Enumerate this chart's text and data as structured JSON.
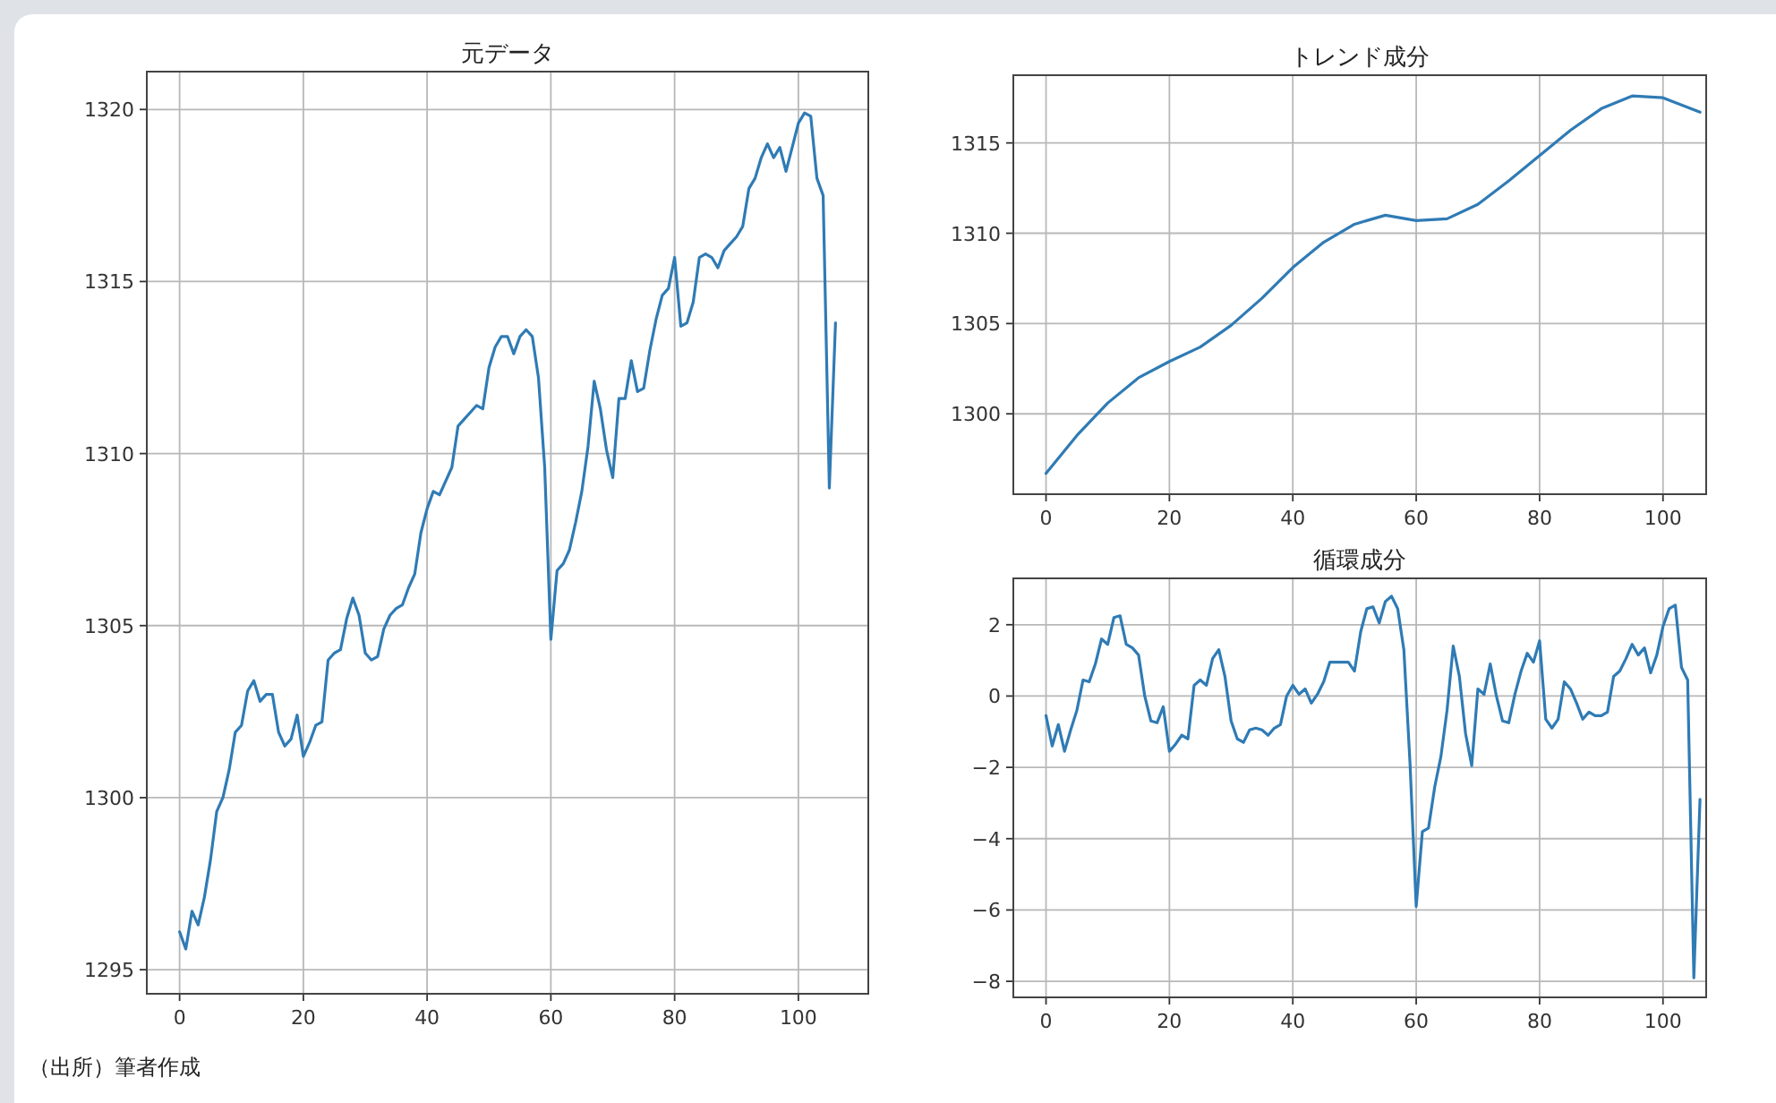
{
  "chart_data": [
    {
      "type": "line",
      "title": "元データ",
      "xlim": [
        -5.3,
        111.3
      ],
      "ylim": [
        1294.3,
        1321.1
      ],
      "xticks": [
        0,
        20,
        40,
        60,
        80,
        100
      ],
      "yticks": [
        1295,
        1300,
        1305,
        1310,
        1315,
        1320
      ],
      "grid": true,
      "annotations": [
        "（出所）筆者作成"
      ],
      "series": [
        {
          "color": "#2f7bb5",
          "x": [
            0,
            1,
            2,
            3,
            4,
            5,
            6,
            7,
            8,
            9,
            10,
            11,
            12,
            13,
            14,
            15,
            16,
            17,
            18,
            19,
            20,
            21,
            22,
            23,
            24,
            25,
            26,
            27,
            28,
            29,
            30,
            31,
            32,
            33,
            34,
            35,
            36,
            37,
            38,
            39,
            40,
            41,
            42,
            43,
            44,
            45,
            46,
            47,
            48,
            49,
            50,
            51,
            52,
            53,
            54,
            55,
            56,
            57,
            58,
            59,
            60,
            61,
            62,
            63,
            64,
            65,
            66,
            67,
            68,
            69,
            70,
            71,
            72,
            73,
            74,
            75,
            76,
            77,
            78,
            79,
            80,
            81,
            82,
            83,
            84,
            85,
            86,
            87,
            88,
            89,
            90,
            91,
            92,
            93,
            94,
            95,
            96,
            97,
            98,
            99,
            100,
            101,
            102,
            103,
            104,
            105,
            106
          ],
          "values": [
            1296.1,
            1295.6,
            1296.7,
            1296.3,
            1297.1,
            1298.2,
            1299.6,
            1300.0,
            1300.8,
            1301.9,
            1302.1,
            1303.1,
            1303.4,
            1302.8,
            1303.0,
            1303.0,
            1301.9,
            1301.5,
            1301.7,
            1302.4,
            1301.2,
            1301.6,
            1302.1,
            1302.2,
            1304.0,
            1304.2,
            1304.3,
            1305.2,
            1305.8,
            1305.3,
            1304.2,
            1304.0,
            1304.1,
            1304.9,
            1305.3,
            1305.5,
            1305.6,
            1306.1,
            1306.5,
            1307.7,
            1308.4,
            1308.9,
            1308.8,
            1309.2,
            1309.6,
            1310.8,
            1311.0,
            1311.2,
            1311.4,
            1311.3,
            1312.5,
            1313.1,
            1313.4,
            1313.4,
            1312.9,
            1313.4,
            1313.6,
            1313.4,
            1312.2,
            1309.6,
            1304.6,
            1306.6,
            1306.8,
            1307.2,
            1308.0,
            1308.9,
            1310.2,
            1312.1,
            1311.3,
            1310.1,
            1309.3,
            1311.6,
            1311.6,
            1312.7,
            1311.8,
            1311.9,
            1313.0,
            1313.9,
            1314.6,
            1314.8,
            1315.7,
            1313.7,
            1313.8,
            1314.4,
            1315.7,
            1315.8,
            1315.7,
            1315.4,
            1315.9,
            1316.1,
            1316.3,
            1316.6,
            1317.7,
            1318.0,
            1318.6,
            1319.0,
            1318.6,
            1318.9,
            1318.2,
            1318.9,
            1319.6,
            1319.9,
            1319.8,
            1318.0,
            1317.5,
            1309.0,
            1313.8
          ]
        }
      ]
    },
    {
      "type": "line",
      "title": "トレンド成分",
      "xlim": [
        -5.3,
        107
      ],
      "ylim": [
        1295.55,
        1318.75
      ],
      "xticks": [
        0,
        20,
        40,
        60,
        80,
        100
      ],
      "yticks": [
        1300,
        1305,
        1310,
        1315
      ],
      "grid": true,
      "series": [
        {
          "color": "#2f7bb5",
          "x": [
            0,
            5,
            10,
            15,
            20,
            25,
            30,
            35,
            40,
            45,
            50,
            55,
            60,
            65,
            70,
            75,
            80,
            85,
            90,
            95,
            100,
            106
          ],
          "values": [
            1296.7,
            1298.8,
            1300.6,
            1302.0,
            1302.9,
            1303.7,
            1304.9,
            1306.4,
            1308.1,
            1309.5,
            1310.5,
            1311.0,
            1310.7,
            1310.8,
            1311.6,
            1312.9,
            1314.3,
            1315.7,
            1316.9,
            1317.6,
            1317.5,
            1316.7
          ]
        }
      ]
    },
    {
      "type": "line",
      "title": "循環成分",
      "xlim": [
        -5.3,
        107
      ],
      "ylim": [
        -8.45,
        3.3
      ],
      "xticks": [
        0,
        20,
        40,
        60,
        80,
        100
      ],
      "yticks": [
        {
          "value": -8,
          "label": "−8"
        },
        {
          "value": -6,
          "label": "−6"
        },
        {
          "value": -4,
          "label": "−4"
        },
        {
          "value": -2,
          "label": "−2"
        },
        0,
        2
      ],
      "grid": true,
      "series": [
        {
          "color": "#2f7bb5",
          "x": [
            0,
            1,
            2,
            3,
            4,
            5,
            6,
            7,
            8,
            9,
            10,
            11,
            12,
            13,
            14,
            15,
            16,
            17,
            18,
            19,
            20,
            21,
            22,
            23,
            24,
            25,
            26,
            27,
            28,
            29,
            30,
            31,
            32,
            33,
            34,
            35,
            36,
            37,
            38,
            39,
            40,
            41,
            42,
            43,
            44,
            45,
            46,
            47,
            48,
            49,
            50,
            51,
            52,
            53,
            54,
            55,
            56,
            57,
            58,
            59,
            60,
            61,
            62,
            63,
            64,
            65,
            66,
            67,
            68,
            69,
            70,
            71,
            72,
            73,
            74,
            75,
            76,
            77,
            78,
            79,
            80,
            81,
            82,
            83,
            84,
            85,
            86,
            87,
            88,
            89,
            90,
            91,
            92,
            93,
            94,
            95,
            96,
            97,
            98,
            99,
            100,
            101,
            102,
            103,
            104,
            105,
            106
          ],
          "values": [
            -0.55,
            -1.4,
            -0.8,
            -1.55,
            -0.95,
            -0.4,
            0.45,
            0.4,
            0.9,
            1.6,
            1.45,
            2.2,
            2.25,
            1.45,
            1.35,
            1.15,
            0.0,
            -0.7,
            -0.75,
            -0.3,
            -1.55,
            -1.35,
            -1.1,
            -1.2,
            0.3,
            0.45,
            0.3,
            1.05,
            1.3,
            0.55,
            -0.7,
            -1.2,
            -1.3,
            -0.95,
            -0.9,
            -0.95,
            -1.1,
            -0.9,
            -0.8,
            0.0,
            0.3,
            0.05,
            0.2,
            -0.2,
            0.05,
            0.4,
            0.95,
            0.95,
            0.95,
            0.95,
            0.7,
            1.8,
            2.45,
            2.5,
            2.05,
            2.65,
            2.8,
            2.45,
            1.3,
            -1.9,
            -5.9,
            -3.8,
            -3.7,
            -2.55,
            -1.7,
            -0.4,
            1.4,
            0.55,
            -1.05,
            -1.95,
            0.2,
            0.05,
            0.9,
            0.0,
            -0.7,
            -0.75,
            0.05,
            0.7,
            1.2,
            0.95,
            1.55,
            -0.65,
            -0.9,
            -0.65,
            0.4,
            0.2,
            -0.2,
            -0.65,
            -0.45,
            -0.55,
            -0.55,
            -0.45,
            0.55,
            0.7,
            1.05,
            1.45,
            1.15,
            1.35,
            0.65,
            1.15,
            1.95,
            2.45,
            2.55,
            0.8,
            0.45,
            -7.9,
            -2.9
          ]
        }
      ]
    }
  ]
}
